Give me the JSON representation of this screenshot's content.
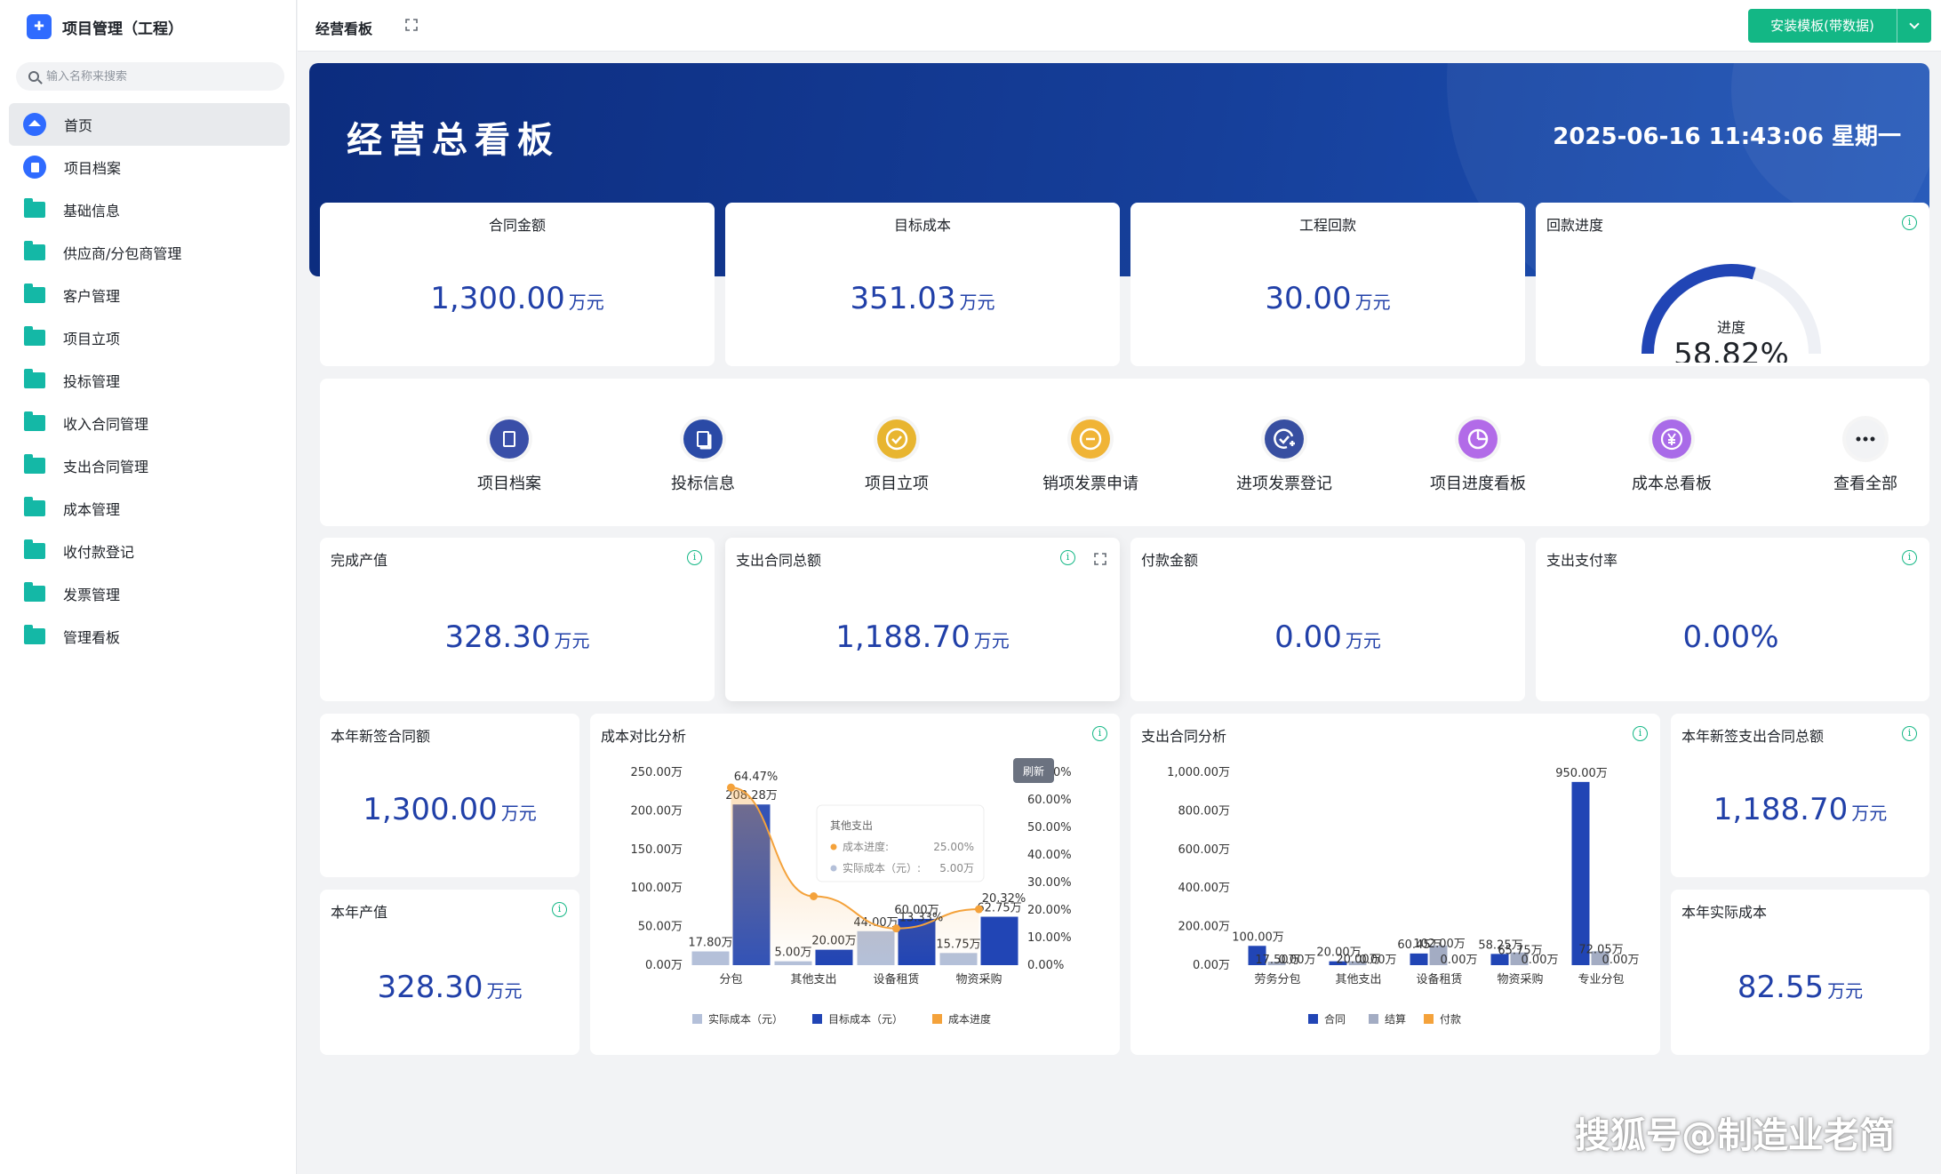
{
  "app": {
    "title": "项目管理（工程）"
  },
  "search": {
    "placeholder": "输入名称来搜索"
  },
  "sidebar": {
    "items": [
      {
        "label": "首页"
      },
      {
        "label": "项目档案"
      },
      {
        "label": "基础信息"
      },
      {
        "label": "供应商/分包商管理"
      },
      {
        "label": "客户管理"
      },
      {
        "label": "项目立项"
      },
      {
        "label": "投标管理"
      },
      {
        "label": "收入合同管理"
      },
      {
        "label": "支出合同管理"
      },
      {
        "label": "成本管理"
      },
      {
        "label": "收付款登记"
      },
      {
        "label": "发票管理"
      },
      {
        "label": "管理看板"
      }
    ]
  },
  "topbar": {
    "breadcrumb": "经营看板",
    "install_label": "安装模板(带数据)"
  },
  "banner": {
    "title": "经营总看板",
    "datetime": "2025-06-16 11:43:06 星期一"
  },
  "unit": "万元",
  "kpis": [
    {
      "label": "合同金额",
      "value": "1,300.00"
    },
    {
      "label": "目标成本",
      "value": "351.03"
    },
    {
      "label": "工程回款",
      "value": "30.00"
    }
  ],
  "progress": {
    "label": "回款进度",
    "inner_label": "进度",
    "value_text": "58.82%",
    "fraction": 0.5882
  },
  "quick_links": [
    {
      "label": "项目档案",
      "icon": "document-icon",
      "color": "#3a4fa8"
    },
    {
      "label": "投标信息",
      "icon": "copy-icon",
      "color": "#2a4aa6"
    },
    {
      "label": "项目立项",
      "icon": "check-icon",
      "color": "#e8b530"
    },
    {
      "label": "销项发票申请",
      "icon": "minus-icon",
      "color": "#f0b436"
    },
    {
      "label": "进项发票登记",
      "icon": "check-plus-icon",
      "color": "#384fa1"
    },
    {
      "label": "项目进度看板",
      "icon": "pie-icon",
      "color": "#b26be8"
    },
    {
      "label": "成本总看板",
      "icon": "yen-icon",
      "color": "#a96be8"
    },
    {
      "label": "查看全部",
      "icon": "more-icon",
      "color": "#f2f3f5"
    }
  ],
  "stats": [
    {
      "label": "完成产值",
      "value": "328.30",
      "unit": "万元"
    },
    {
      "label": "支出合同总额",
      "value": "1,188.70",
      "unit": "万元"
    },
    {
      "label": "付款金额",
      "value": "0.00",
      "unit": "万元"
    },
    {
      "label": "支出支付率",
      "value": "0.00%",
      "unit": ""
    }
  ],
  "left_stats": [
    {
      "label": "本年新签合同额",
      "value": "1,300.00",
      "unit": "万元"
    },
    {
      "label": "本年产值",
      "value": "328.30",
      "unit": "万元"
    }
  ],
  "right_stats": [
    {
      "label": "本年新签支出合同总额",
      "value": "1,188.70",
      "unit": "万元"
    },
    {
      "label": "本年实际成本",
      "value": "82.55",
      "unit": "万元"
    }
  ],
  "chart_data": [
    {
      "type": "bar",
      "title": "成本对比分析",
      "categories": [
        "分包",
        "其他支出",
        "设备租赁",
        "物资采购"
      ],
      "y_ticks": [
        "0.00万",
        "50.00万",
        "100.00万",
        "150.00万",
        "200.00万",
        "250.00万"
      ],
      "y2_ticks": [
        "0.00%",
        "10.00%",
        "20.00%",
        "30.00%",
        "40.00%",
        "50.00%",
        "60.00%",
        "70.00%"
      ],
      "ylim": [
        0,
        250
      ],
      "y2lim": [
        0,
        70
      ],
      "series": [
        {
          "name": "实际成本（元）",
          "kind": "bar",
          "color": "#b4c0d9",
          "values": [
            17.8,
            5.0,
            44.0,
            15.75
          ],
          "labels": [
            "17.80万",
            "5.00万",
            "44.00万",
            "15.75万"
          ]
        },
        {
          "name": "目标成本（元）",
          "kind": "bar",
          "color": "#2145b5",
          "values": [
            208.28,
            20.0,
            60.0,
            62.75
          ],
          "labels": [
            "208.28万",
            "20.00万",
            "60.00万",
            "62.75万"
          ]
        },
        {
          "name": "成本进度",
          "kind": "line",
          "color": "#f4a23b",
          "values": [
            64.47,
            25.0,
            13.33,
            20.32
          ],
          "labels": [
            "64.47%",
            "",
            "13.33%",
            "20.32%"
          ]
        }
      ],
      "tooltip": {
        "title": "其他支出",
        "rows": [
          [
            "成本进度:",
            "25.00%"
          ],
          [
            "实际成本（元）:",
            "5.00万"
          ]
        ]
      },
      "refresh_label": "刷新"
    },
    {
      "type": "bar",
      "title": "支出合同分析",
      "categories": [
        "劳务分包",
        "其他支出",
        "设备租赁",
        "物资采购",
        "专业分包"
      ],
      "y_ticks": [
        "0.00万",
        "200.00万",
        "400.00万",
        "600.00万",
        "800.00万",
        "1,000.00万"
      ],
      "ylim": [
        0,
        1000
      ],
      "series": [
        {
          "name": "合同",
          "color": "#2145b5",
          "values": [
            100.0,
            20.0,
            60.45,
            58.25,
            950.0
          ],
          "labels": [
            "100.00万",
            "20.00万",
            "60.45万",
            "58.25万",
            "950.00万"
          ]
        },
        {
          "name": "结算",
          "color": "#a3acc3",
          "values": [
            17.5,
            20.0,
            102.0,
            65.75,
            72.05
          ],
          "labels": [
            "17.50万",
            "20.00万",
            "102.00万",
            "65.75万",
            "72.05万"
          ]
        },
        {
          "name": "付款",
          "color": "#f4a23b",
          "values": [
            0,
            0,
            0,
            0,
            0
          ],
          "labels": [
            "0.00万",
            "0.00万",
            "0.00万",
            "0.00万",
            "0.00万"
          ]
        }
      ]
    }
  ],
  "watermark": "搜狐号@制造业老简"
}
